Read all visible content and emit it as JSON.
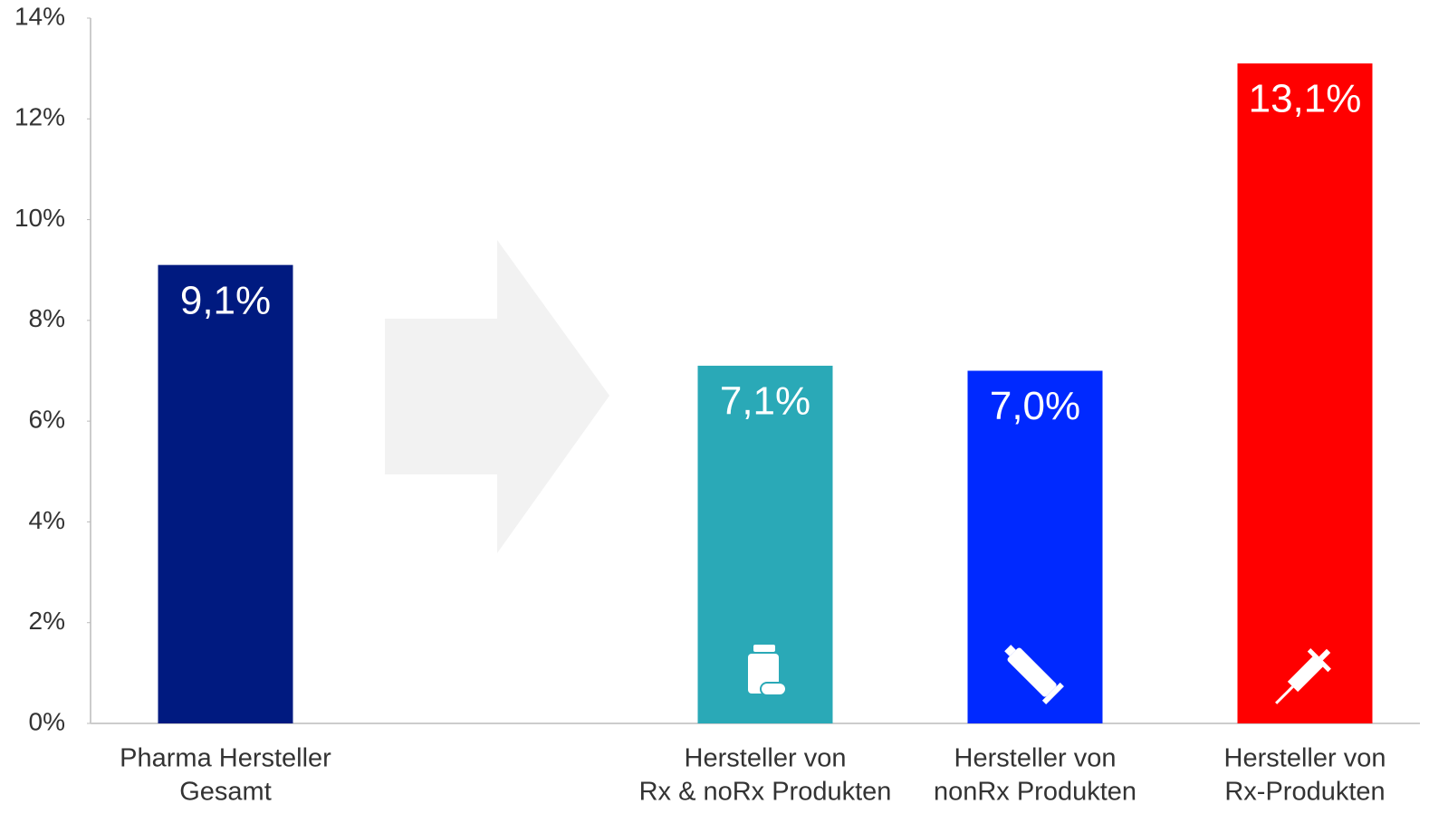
{
  "chart_data": {
    "type": "bar",
    "categories": [
      [
        "Pharma Hersteller",
        "Gesamt"
      ],
      null,
      [
        "Hersteller von",
        "Rx & noRx Produkten"
      ],
      [
        "Hersteller von",
        "nonRx Produkten"
      ],
      [
        "Hersteller von",
        "Rx-Produkten"
      ]
    ],
    "values": [
      9.1,
      null,
      7.1,
      7.0,
      13.1
    ],
    "value_labels": [
      "9,1%",
      null,
      "7,1%",
      "7,0%",
      "13,1%"
    ],
    "colors": [
      "#001a80",
      null,
      "#2aa9b7",
      "#0029ff",
      "#ff0000"
    ],
    "ylim": [
      0,
      14
    ],
    "yticks": [
      {
        "value": 0,
        "label": "0%"
      },
      {
        "value": 2,
        "label": "2%"
      },
      {
        "value": 4,
        "label": "4%"
      },
      {
        "value": 6,
        "label": "6%"
      },
      {
        "value": 8,
        "label": "8%"
      },
      {
        "value": 10,
        "label": "10%"
      },
      {
        "value": 12,
        "label": "12%"
      },
      {
        "value": 14,
        "label": "14%"
      }
    ],
    "grid": false
  }
}
